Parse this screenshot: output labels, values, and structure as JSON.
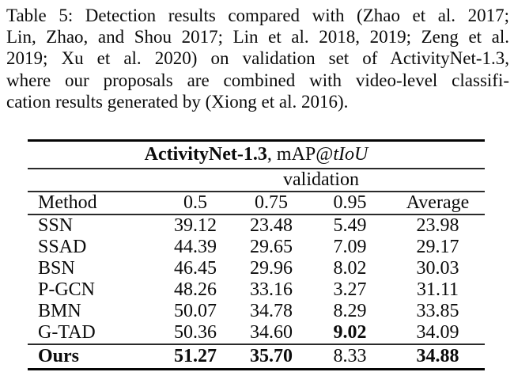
{
  "colors": {
    "text": "#0b0b0b",
    "background": "#ffffff",
    "rule": "#050505"
  },
  "caption": {
    "lines": [
      "Table 5: Detection results compared with (Zhao et al. 2017;",
      "Lin, Zhao, and Shou 2017; Lin et al. 2018, 2019; Zeng et al.",
      "2019; Xu et al. 2020) on validation set of ActivityNet-1.3,",
      "where our proposals are combined with video-level classifi-",
      "cation results generated by (Xiong et al. 2016)."
    ]
  },
  "table": {
    "title": {
      "dataset": "ActivityNet-1.3",
      "map_part": ", mAP@",
      "tiou": "tIoU"
    },
    "subheader": "validation",
    "columns": [
      "Method",
      "0.5",
      "0.75",
      "0.95",
      "Average"
    ],
    "rows": [
      {
        "method": "SSN",
        "bold_method": false,
        "values": [
          "39.12",
          "23.48",
          "5.49",
          "23.98"
        ],
        "bold_values": [
          false,
          false,
          false,
          false
        ],
        "is_ours": false
      },
      {
        "method": "SSAD",
        "bold_method": false,
        "values": [
          "44.39",
          "29.65",
          "7.09",
          "29.17"
        ],
        "bold_values": [
          false,
          false,
          false,
          false
        ],
        "is_ours": false
      },
      {
        "method": "BSN",
        "bold_method": false,
        "values": [
          "46.45",
          "29.96",
          "8.02",
          "30.03"
        ],
        "bold_values": [
          false,
          false,
          false,
          false
        ],
        "is_ours": false
      },
      {
        "method": "P-GCN",
        "bold_method": false,
        "values": [
          "48.26",
          "33.16",
          "3.27",
          "31.11"
        ],
        "bold_values": [
          false,
          false,
          false,
          false
        ],
        "is_ours": false
      },
      {
        "method": "BMN",
        "bold_method": false,
        "values": [
          "50.07",
          "34.78",
          "8.29",
          "33.85"
        ],
        "bold_values": [
          false,
          false,
          false,
          false
        ],
        "is_ours": false
      },
      {
        "method": "G-TAD",
        "bold_method": false,
        "values": [
          "50.36",
          "34.60",
          "9.02",
          "34.09"
        ],
        "bold_values": [
          false,
          false,
          true,
          false
        ],
        "is_ours": false
      },
      {
        "method": "Ours",
        "bold_method": true,
        "values": [
          "51.27",
          "35.70",
          "8.33",
          "34.88"
        ],
        "bold_values": [
          true,
          true,
          false,
          true
        ],
        "is_ours": true
      }
    ]
  }
}
